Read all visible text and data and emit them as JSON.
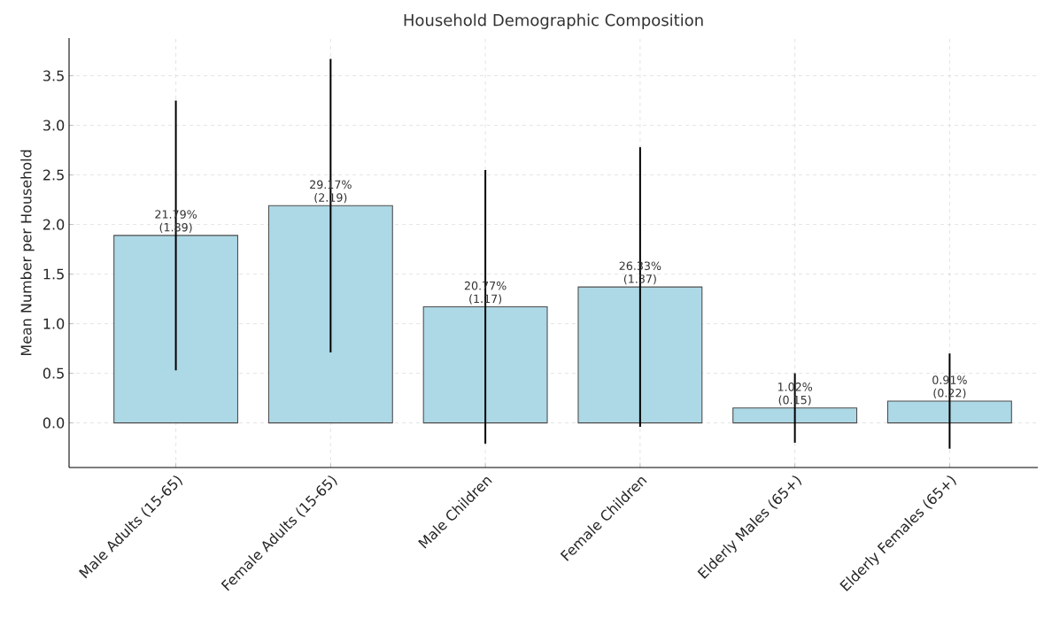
{
  "chart_data": {
    "type": "bar",
    "title": "Household Demographic Composition",
    "ylabel": "Mean Number per Household",
    "categories": [
      "Male Adults (15-65)",
      "Female Adults (15-65)",
      "Male Children",
      "Female Children",
      "Elderly Males (65+)",
      "Elderly Females (65+)"
    ],
    "values": [
      1.89,
      2.19,
      1.17,
      1.37,
      0.15,
      0.22
    ],
    "errors": [
      1.36,
      1.48,
      1.38,
      1.41,
      0.35,
      0.48
    ],
    "value_labels": [
      "21.79% (1.89)",
      "29.17% (2.19)",
      "20.77% (1.17)",
      "26.33% (1.37)",
      "1.02% (0.15)",
      "0.91% (0.22)"
    ],
    "color": "#add8e6",
    "ylim": [
      -0.45,
      3.88
    ],
    "yticks": [
      {
        "value": 0,
        "label": "0.0"
      },
      0.5,
      {
        "value": 1,
        "label": "1.0"
      },
      1.5,
      {
        "value": 2,
        "label": "2.0"
      },
      2.5,
      {
        "value": 3,
        "label": "3.0"
      },
      3.5
    ],
    "grid": true
  }
}
